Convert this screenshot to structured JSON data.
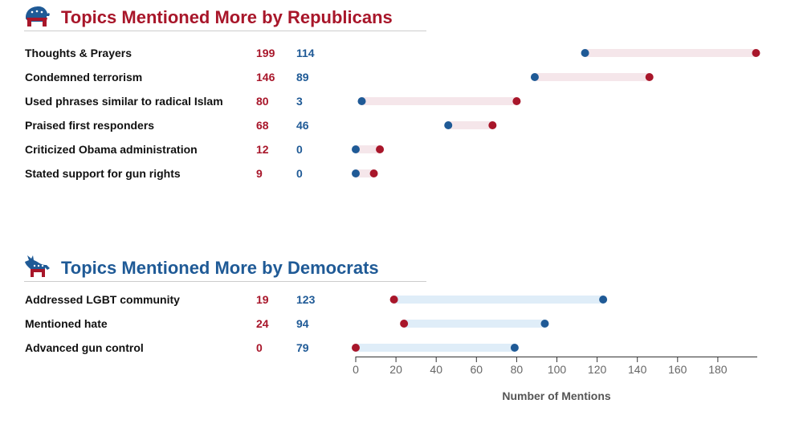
{
  "colors": {
    "republican": "#a8162a",
    "democrat": "#1f5a96",
    "rep_bar": "#f5e6ea",
    "dem_bar": "#dfedf8"
  },
  "chart_data": {
    "type": "dumbbell",
    "xlabel": "Number of Mentions",
    "x_ticks": [
      "0",
      "20",
      "40",
      "60",
      "80",
      "100",
      "120",
      "140",
      "160",
      "180"
    ],
    "xlim": [
      0,
      200
    ],
    "series_order": [
      "republican",
      "democrat"
    ],
    "sections": [
      {
        "title": "Topics Mentioned More by Republicans",
        "icon": "elephant-icon",
        "rows": [
          {
            "label": "Thoughts & Prayers",
            "republican": 199,
            "democrat": 114
          },
          {
            "label": "Condemned terrorism",
            "republican": 146,
            "democrat": 89
          },
          {
            "label": "Used phrases similar to radical Islam",
            "republican": 80,
            "democrat": 3
          },
          {
            "label": "Praised first responders",
            "republican": 68,
            "democrat": 46
          },
          {
            "label": "Criticized Obama administration",
            "republican": 12,
            "democrat": 0
          },
          {
            "label": "Stated support for gun rights",
            "republican": 9,
            "democrat": 0
          }
        ]
      },
      {
        "title": "Topics Mentioned More by Democrats",
        "icon": "donkey-icon",
        "rows": [
          {
            "label": "Addressed LGBT community",
            "republican": 19,
            "democrat": 123
          },
          {
            "label": "Mentioned hate",
            "republican": 24,
            "democrat": 94
          },
          {
            "label": "Advanced gun control",
            "republican": 0,
            "democrat": 79
          }
        ]
      }
    ]
  }
}
